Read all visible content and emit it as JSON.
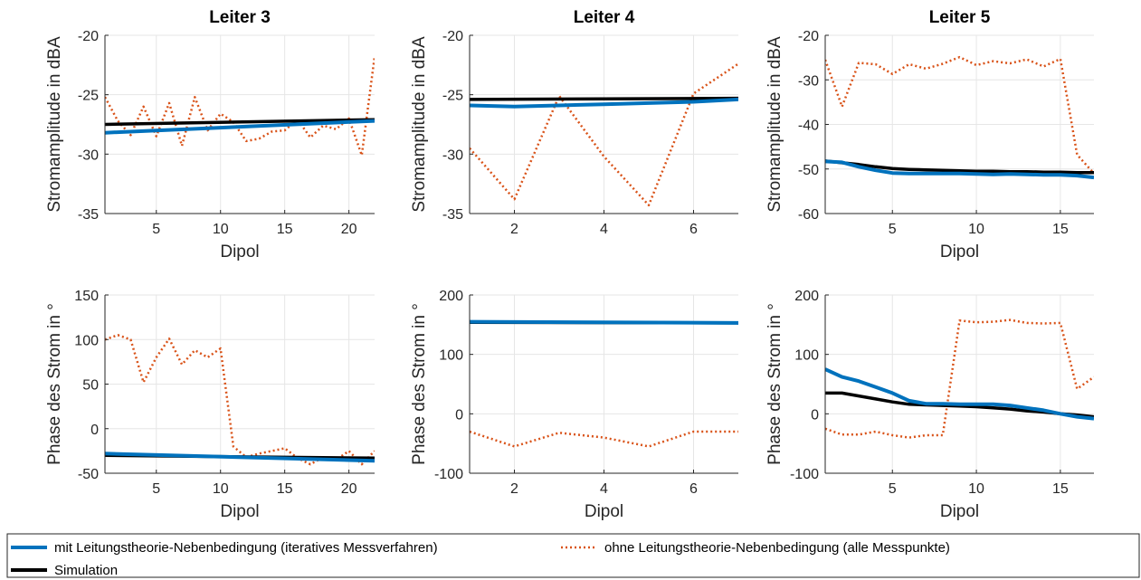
{
  "chart_data": [
    {
      "type": "line",
      "title": "Leiter 3",
      "xlabel": "Dipol",
      "ylabel": "Stromamplitude in dBA",
      "xlim": [
        1,
        22
      ],
      "ylim": [
        -35,
        -20
      ],
      "xticks": [
        5,
        10,
        15,
        20
      ],
      "yticks": [
        -35,
        -30,
        -25,
        -20
      ],
      "series": [
        {
          "x": [
            1,
            22
          ],
          "y": [
            -28.2,
            -27.2
          ]
        },
        {
          "x": [
            1,
            2,
            3,
            4,
            5,
            6,
            7,
            8,
            9,
            10,
            11,
            12,
            13,
            14,
            15,
            16,
            17,
            18,
            19,
            20,
            21,
            22
          ],
          "y": [
            -25.2,
            -27.2,
            -28.4,
            -26.0,
            -28.5,
            -25.7,
            -29.3,
            -25.2,
            -28.0,
            -26.6,
            -27.3,
            -28.9,
            -28.7,
            -28.1,
            -28.0,
            -27.1,
            -28.6,
            -27.6,
            -27.9,
            -27.0,
            -30.1,
            -21.8
          ]
        },
        {
          "x": [
            1,
            22
          ],
          "y": [
            -27.5,
            -27.1
          ]
        }
      ]
    },
    {
      "type": "line",
      "title": "Leiter 4",
      "xlabel": "",
      "ylabel": "Stromamplitude in dBA",
      "xlim": [
        1,
        7
      ],
      "ylim": [
        -35,
        -20
      ],
      "xticks": [
        2,
        4,
        6
      ],
      "yticks": [
        -35,
        -30,
        -25,
        -20
      ],
      "series": [
        {
          "x": [
            1,
            2,
            3,
            4,
            5,
            6,
            7
          ],
          "y": [
            -25.9,
            -26.0,
            -25.9,
            -25.8,
            -25.7,
            -25.6,
            -25.4
          ]
        },
        {
          "x": [
            1,
            2,
            3,
            4,
            5,
            6,
            7
          ],
          "y": [
            -29.5,
            -33.8,
            -25.1,
            -30.2,
            -34.3,
            -24.9,
            -22.4
          ]
        },
        {
          "x": [
            1,
            7
          ],
          "y": [
            -25.4,
            -25.3
          ]
        }
      ]
    },
    {
      "type": "line",
      "title": "Leiter 5",
      "xlabel": "Dipol",
      "ylabel": "Stromamplitude in dBA",
      "xlim": [
        1,
        17
      ],
      "ylim": [
        -60,
        -20
      ],
      "xticks": [
        5,
        10,
        15
      ],
      "yticks": [
        -60,
        -50,
        -40,
        -30,
        -20
      ],
      "series": [
        {
          "x": [
            1,
            2,
            3,
            4,
            5,
            6,
            7,
            8,
            9,
            10,
            11,
            12,
            13,
            14,
            15,
            16,
            17
          ],
          "y": [
            -48.3,
            -48.5,
            -49.5,
            -50.3,
            -50.9,
            -51.0,
            -51.0,
            -51.0,
            -51.0,
            -51.1,
            -51.2,
            -51.1,
            -51.2,
            -51.3,
            -51.3,
            -51.5,
            -51.9
          ]
        },
        {
          "x": [
            1,
            2,
            3,
            4,
            5,
            6,
            7,
            8,
            9,
            10,
            11,
            12,
            13,
            14,
            15,
            16,
            17
          ],
          "y": [
            -25.5,
            -36.0,
            -26.2,
            -26.5,
            -28.7,
            -26.5,
            -27.5,
            -26.4,
            -24.9,
            -26.7,
            -25.8,
            -26.3,
            -25.4,
            -27.0,
            -25.3,
            -46.8,
            -51.0
          ]
        },
        {
          "x": [
            1,
            2,
            3,
            4,
            5,
            6,
            7,
            8,
            9,
            10,
            11,
            12,
            13,
            14,
            15,
            16,
            17
          ],
          "y": [
            -48.2,
            -48.6,
            -49.0,
            -49.5,
            -49.9,
            -50.1,
            -50.2,
            -50.3,
            -50.4,
            -50.5,
            -50.5,
            -50.6,
            -50.6,
            -50.7,
            -50.7,
            -50.8,
            -50.8
          ]
        }
      ]
    },
    {
      "type": "line",
      "title": "",
      "xlabel": "Dipol",
      "ylabel": "Phase des Strom in °",
      "xlim": [
        1,
        22
      ],
      "ylim": [
        -50,
        150
      ],
      "xticks": [
        5,
        10,
        15,
        20
      ],
      "yticks": [
        -50,
        0,
        50,
        100,
        150
      ],
      "series": [
        {
          "x": [
            1,
            22
          ],
          "y": [
            -28,
            -36
          ]
        },
        {
          "x": [
            1,
            2,
            3,
            4,
            5,
            6,
            7,
            8,
            9,
            10,
            11,
            12,
            13,
            14,
            15,
            16,
            17,
            18,
            19,
            20,
            21,
            22
          ],
          "y": [
            100,
            105,
            100,
            52,
            80,
            101,
            72,
            88,
            80,
            90,
            -20,
            -32,
            -28,
            -25,
            -22,
            -33,
            -40,
            -32,
            -35,
            -25,
            -40,
            -25
          ]
        },
        {
          "x": [
            1,
            22
          ],
          "y": [
            -30,
            -33
          ]
        }
      ]
    },
    {
      "type": "line",
      "title": "",
      "xlabel": "Dipol",
      "ylabel": "Phase des Strom in °",
      "xlim": [
        1,
        7
      ],
      "ylim": [
        -100,
        200
      ],
      "xticks": [
        2,
        4,
        6
      ],
      "yticks": [
        -100,
        0,
        100,
        200
      ],
      "series": [
        {
          "x": [
            1,
            7
          ],
          "y": [
            155,
            153
          ]
        },
        {
          "x": [
            1,
            2,
            3,
            4,
            5,
            6,
            7
          ],
          "y": [
            -30,
            -55,
            -32,
            -40,
            -55,
            -30,
            -30
          ]
        },
        {
          "x": [
            1,
            7
          ],
          "y": [
            154,
            153
          ]
        }
      ]
    },
    {
      "type": "line",
      "title": "",
      "xlabel": "Dipol",
      "ylabel": "Phase des Strom in °",
      "xlim": [
        1,
        17
      ],
      "ylim": [
        -100,
        200
      ],
      "xticks": [
        5,
        10,
        15
      ],
      "yticks": [
        -100,
        0,
        100,
        200
      ],
      "series": [
        {
          "x": [
            1,
            2,
            3,
            4,
            5,
            6,
            7,
            8,
            9,
            10,
            11,
            12,
            13,
            14,
            15,
            16,
            17
          ],
          "y": [
            75,
            62,
            55,
            45,
            35,
            22,
            17,
            17,
            16,
            16,
            16,
            14,
            10,
            6,
            0,
            -5,
            -8
          ]
        },
        {
          "x": [
            1,
            2,
            3,
            4,
            5,
            6,
            7,
            8,
            9,
            10,
            11,
            12,
            13,
            14,
            15,
            16,
            17
          ],
          "y": [
            -25,
            -35,
            -35,
            -30,
            -36,
            -40,
            -36,
            -36,
            157,
            154,
            155,
            158,
            153,
            152,
            153,
            42,
            62
          ]
        },
        {
          "x": [
            1,
            2,
            3,
            4,
            5,
            6,
            7,
            8,
            9,
            10,
            11,
            12,
            13,
            14,
            15,
            16,
            17
          ],
          "y": [
            35,
            35,
            30,
            25,
            20,
            16,
            15,
            14,
            13,
            12,
            10,
            8,
            5,
            3,
            0,
            -2,
            -5
          ]
        }
      ]
    }
  ],
  "legend": {
    "items": [
      {
        "label": "mit Leitungstheorie-Nebenbedingung (iteratives Messverfahren)",
        "color": "#0072BD",
        "style": "solid"
      },
      {
        "label": "ohne Leitungstheorie-Nebenbedingung (alle Messpunkte)",
        "color": "#D95319",
        "style": "dotted"
      },
      {
        "label": "Simulation",
        "color": "#000000",
        "style": "solid"
      }
    ]
  },
  "colors": {
    "mit": "#0072BD",
    "ohne": "#D95319",
    "sim": "#000000",
    "grid": "#e6e6e6",
    "axis": "#262626"
  }
}
